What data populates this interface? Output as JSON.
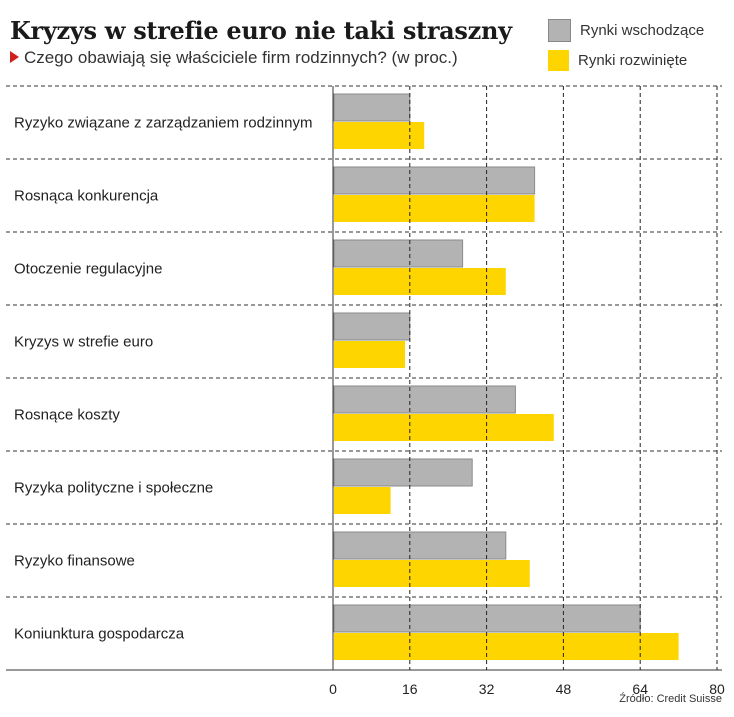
{
  "chart_data": {
    "type": "bar",
    "orientation": "horizontal",
    "title": "Kryzys w strefie euro nie taki straszny",
    "subtitle": "Czego obawiają się właściciele firm rodzinnych? (w proc.)",
    "categories": [
      "Ryzyko związane z zarządzaniem rodzinnym",
      "Rosnąca konkurencja",
      "Otoczenie regulacyjne",
      "Kryzys w strefie euro",
      "Rosnące koszty",
      "Ryzyka polityczne i społeczne",
      "Ryzyko finansowe",
      "Koniunktura gospodarcza"
    ],
    "series": [
      {
        "name": "Rynki wschodzące",
        "color": "#b3b3b3",
        "values": [
          16,
          42,
          27,
          16,
          38,
          29,
          36,
          64
        ]
      },
      {
        "name": "Rynki rozwinięte",
        "color": "#ffd500",
        "values": [
          19,
          42,
          36,
          15,
          46,
          12,
          41,
          72
        ]
      }
    ],
    "xlim": [
      0,
      80
    ],
    "xticks": [
      "0",
      "16",
      "32",
      "48",
      "64",
      "80"
    ],
    "grid": "vertical dashed",
    "legend_position": "top-right",
    "source": "Źródło: Credit Suisse"
  }
}
